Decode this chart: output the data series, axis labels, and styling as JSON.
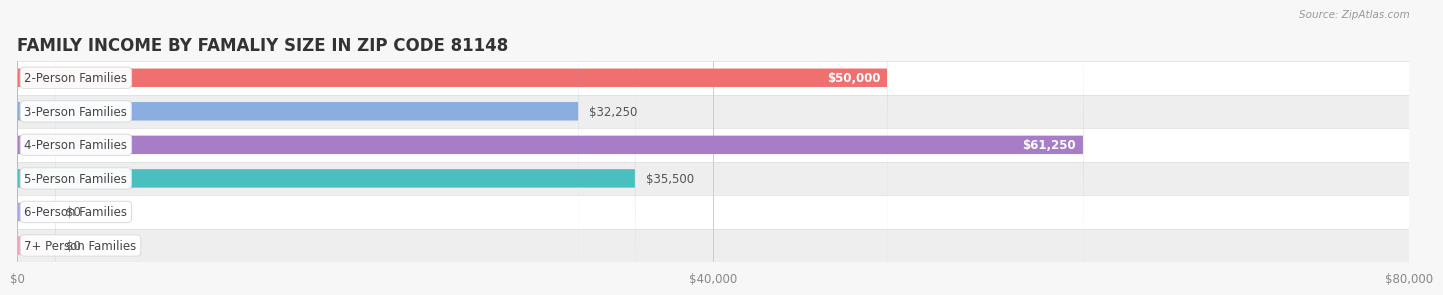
{
  "title": "FAMILY INCOME BY FAMALIY SIZE IN ZIP CODE 81148",
  "source": "Source: ZipAtlas.com",
  "categories": [
    "2-Person Families",
    "3-Person Families",
    "4-Person Families",
    "5-Person Families",
    "6-Person Families",
    "7+ Person Families"
  ],
  "values": [
    50000,
    32250,
    61250,
    35500,
    0,
    0
  ],
  "bar_colors": [
    "#F07070",
    "#8AAEE0",
    "#A87DC8",
    "#4BBFBF",
    "#A0A8E8",
    "#F4A0B8"
  ],
  "value_labels": [
    "$50,000",
    "$32,250",
    "$61,250",
    "$35,500",
    "$0",
    "$0"
  ],
  "value_inside": [
    true,
    false,
    true,
    false,
    false,
    false
  ],
  "xlim": [
    0,
    80000
  ],
  "xticks": [
    0,
    40000,
    80000
  ],
  "xticklabels": [
    "$0",
    "$40,000",
    "$80,000"
  ],
  "bar_height": 0.55,
  "background_color": "#f7f7f7",
  "row_bg_even": "#ffffff",
  "row_bg_odd": "#eeeeee",
  "title_fontsize": 12,
  "label_fontsize": 8.5,
  "value_fontsize": 8.5,
  "tick_fontsize": 8.5
}
